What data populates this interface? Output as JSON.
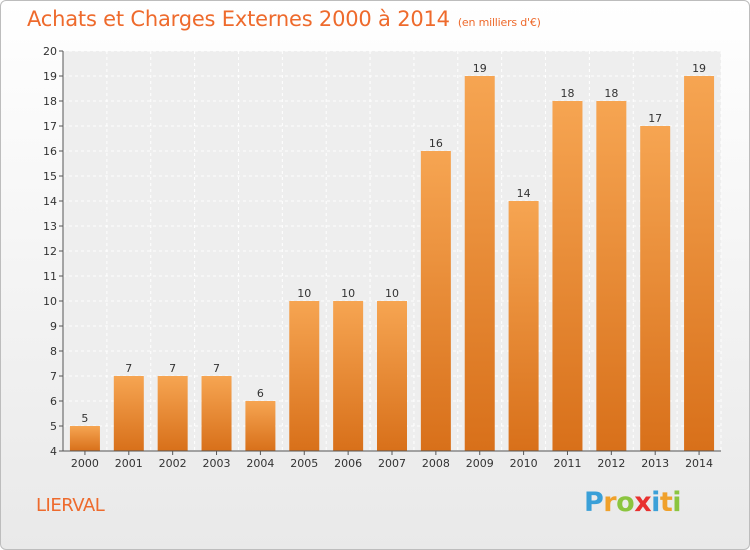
{
  "header": {
    "title": "Achats et Charges Externes 2000 à 2014",
    "subtitle": "(en milliers d'€)"
  },
  "footer": {
    "commune": "LIERVAL",
    "logo": {
      "letters": [
        "P",
        "r",
        "o",
        "x",
        "i",
        "t",
        "i"
      ],
      "colors": [
        "#3aa0d8",
        "#f0a12b",
        "#8bc53f",
        "#e8312f",
        "#3aa0d8",
        "#f0a12b",
        "#8bc53f"
      ]
    }
  },
  "chart_data": {
    "type": "bar",
    "categories": [
      "2000",
      "2001",
      "2002",
      "2003",
      "2004",
      "2005",
      "2006",
      "2007",
      "2008",
      "2009",
      "2010",
      "2011",
      "2012",
      "2013",
      "2014"
    ],
    "values": [
      5,
      7,
      7,
      7,
      6,
      10,
      10,
      10,
      16,
      19,
      14,
      18,
      18,
      17,
      19
    ],
    "ylim": [
      4,
      20
    ],
    "yticks": [
      4,
      5,
      6,
      7,
      8,
      9,
      10,
      11,
      12,
      13,
      14,
      15,
      16,
      17,
      18,
      19,
      20
    ],
    "grid": true,
    "bar_color_top": "#f6a552",
    "bar_color_bottom": "#d8701a"
  }
}
